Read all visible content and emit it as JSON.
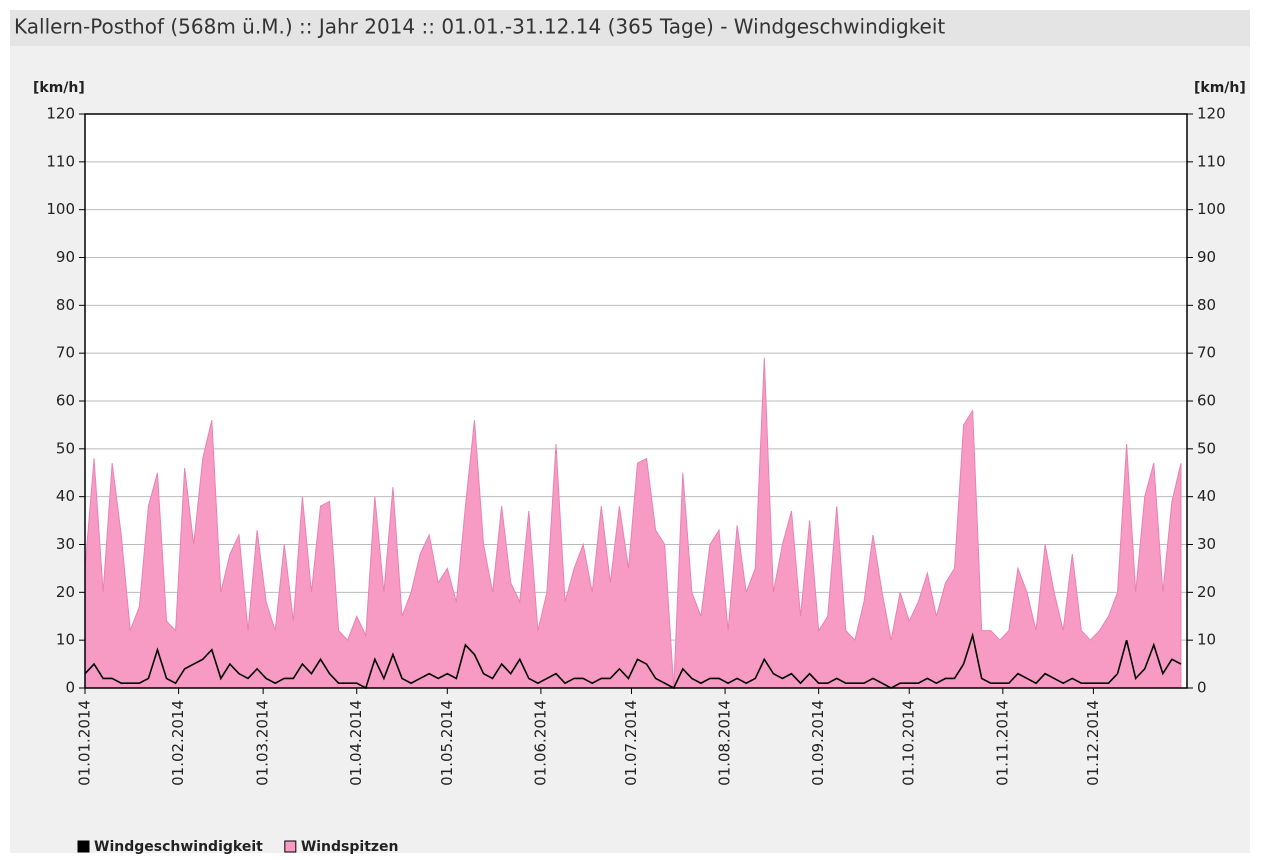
{
  "chart_data": {
    "type": "area",
    "title": "Kallern-Posthof (568m ü.M.) :: Jahr 2014  :: 01.01.-31.12.14 (365 Tage) - Windgeschwindigkeit",
    "y_label": "[km/h]",
    "y2_label": "[km/h]",
    "x": [
      0,
      3,
      6,
      9,
      12,
      15,
      18,
      21,
      24,
      27,
      30,
      33,
      36,
      39,
      42,
      45,
      48,
      51,
      54,
      57,
      60,
      63,
      66,
      69,
      72,
      75,
      78,
      81,
      84,
      87,
      90,
      93,
      96,
      99,
      102,
      105,
      108,
      111,
      114,
      117,
      120,
      123,
      126,
      129,
      132,
      135,
      138,
      141,
      144,
      147,
      150,
      153,
      156,
      159,
      162,
      165,
      168,
      171,
      174,
      177,
      180,
      183,
      186,
      189,
      192,
      195,
      198,
      201,
      204,
      207,
      210,
      213,
      216,
      219,
      222,
      225,
      228,
      231,
      234,
      237,
      240,
      243,
      246,
      249,
      252,
      255,
      258,
      261,
      264,
      267,
      270,
      273,
      276,
      279,
      282,
      285,
      288,
      291,
      294,
      297,
      300,
      303,
      306,
      309,
      312,
      315,
      318,
      321,
      324,
      327,
      330,
      333,
      336,
      339,
      342,
      345,
      348,
      351,
      354,
      357,
      360,
      363
    ],
    "xlim": [
      0,
      365
    ],
    "xticks": [
      {
        "value": 0,
        "label": "01.01.2014"
      },
      {
        "value": 31,
        "label": "01.02.2014"
      },
      {
        "value": 59,
        "label": "01.03.2014"
      },
      {
        "value": 90,
        "label": "01.04.2014"
      },
      {
        "value": 120,
        "label": "01.05.2014"
      },
      {
        "value": 151,
        "label": "01.06.2014"
      },
      {
        "value": 181,
        "label": "01.07.2014"
      },
      {
        "value": 212,
        "label": "01.08.2014"
      },
      {
        "value": 243,
        "label": "01.09.2014"
      },
      {
        "value": 273,
        "label": "01.10.2014"
      },
      {
        "value": 304,
        "label": "01.11.2014"
      },
      {
        "value": 334,
        "label": "01.12.2014"
      }
    ],
    "ylim": [
      0,
      120
    ],
    "yticks": [
      0,
      10,
      20,
      30,
      40,
      50,
      60,
      70,
      80,
      90,
      100,
      110,
      120
    ],
    "y2lim": [
      0,
      120
    ],
    "y2ticks": [
      0,
      10,
      20,
      30,
      40,
      50,
      60,
      70,
      80,
      90,
      100,
      110,
      120
    ],
    "grid": true,
    "series": [
      {
        "name": "Windgeschwindigkeit",
        "color": "#000000",
        "style": "line",
        "values": [
          3,
          5,
          2,
          2,
          1,
          1,
          1,
          2,
          8,
          2,
          1,
          4,
          5,
          6,
          8,
          2,
          5,
          3,
          2,
          4,
          2,
          1,
          2,
          2,
          5,
          3,
          6,
          3,
          1,
          1,
          1,
          0,
          6,
          2,
          7,
          2,
          1,
          2,
          3,
          2,
          3,
          2,
          9,
          7,
          3,
          2,
          5,
          3,
          6,
          2,
          1,
          2,
          3,
          1,
          2,
          2,
          1,
          2,
          2,
          4,
          2,
          6,
          5,
          2,
          1,
          0,
          4,
          2,
          1,
          2,
          2,
          1,
          2,
          1,
          2,
          6,
          3,
          2,
          3,
          1,
          3,
          1,
          1,
          2,
          1,
          1,
          1,
          2,
          1,
          0,
          1,
          1,
          1,
          2,
          1,
          2,
          2,
          5,
          11,
          2,
          1,
          1,
          1,
          3,
          2,
          1,
          3,
          2,
          1,
          2,
          1,
          1,
          1,
          1,
          3,
          10,
          2,
          4,
          9,
          3,
          6,
          5
        ]
      },
      {
        "name": "Windspitzen",
        "color": "#f79ac4",
        "style": "area",
        "values": [
          25,
          48,
          20,
          47,
          32,
          12,
          17,
          38,
          45,
          14,
          12,
          46,
          30,
          48,
          56,
          20,
          28,
          32,
          12,
          33,
          18,
          12,
          30,
          14,
          40,
          20,
          38,
          39,
          12,
          10,
          15,
          11,
          40,
          20,
          42,
          15,
          20,
          28,
          32,
          22,
          25,
          18,
          38,
          56,
          30,
          20,
          38,
          22,
          18,
          37,
          12,
          20,
          51,
          18,
          25,
          30,
          20,
          38,
          22,
          38,
          25,
          47,
          48,
          33,
          30,
          0,
          45,
          20,
          15,
          30,
          33,
          12,
          34,
          20,
          25,
          69,
          20,
          30,
          37,
          15,
          35,
          12,
          15,
          38,
          12,
          10,
          18,
          32,
          20,
          10,
          20,
          14,
          18,
          24,
          15,
          22,
          25,
          55,
          58,
          12,
          12,
          10,
          12,
          25,
          20,
          12,
          30,
          20,
          12,
          28,
          12,
          10,
          12,
          15,
          20,
          51,
          20,
          40,
          47,
          20,
          39,
          47
        ]
      }
    ]
  }
}
